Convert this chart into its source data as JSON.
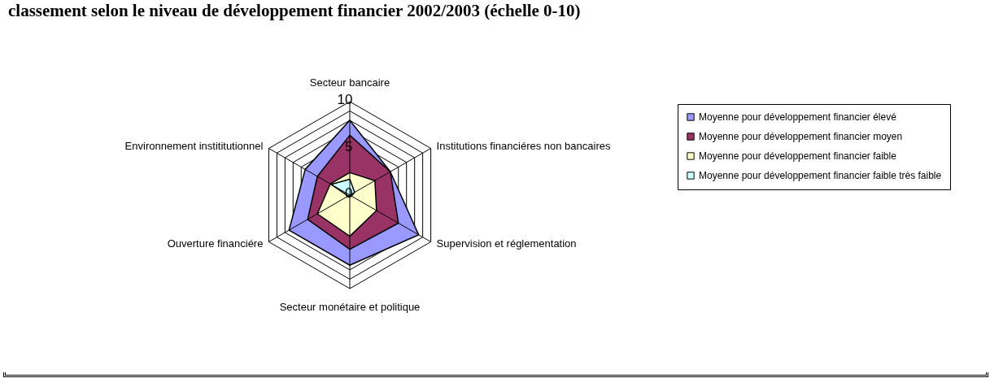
{
  "chart_data": {
    "type": "radar",
    "title": "classement selon le niveau de développement financier 2002/2003 (échelle 0-10)",
    "categories": [
      "Secteur bancaire",
      "Institutions financiéres non bancaires",
      "Supervision et réglementation",
      "Secteur monétaire et politique",
      "Ouverture financiére",
      "Environnement instititutionnel"
    ],
    "series": [
      {
        "name": "Moyenne pour développement financier élevé",
        "color": "#9999ff",
        "values": [
          8,
          5,
          8.5,
          7.5,
          7.5,
          5.5
        ]
      },
      {
        "name": "Moyenne pour développement financier moyen",
        "color": "#993366",
        "values": [
          6.4,
          5,
          6,
          5.8,
          5.2,
          4
        ]
      },
      {
        "name": "Moyenne pour développement financier faible",
        "color": "#ffffcc",
        "values": [
          2.4,
          3.1,
          3.3,
          4.4,
          4,
          2.4
        ]
      },
      {
        "name": "Moyenne pour développement financier faible très faible",
        "color": "#ccffff",
        "values": [
          1.7,
          0.6,
          0.2,
          0.2,
          0.2,
          2.3
        ]
      }
    ],
    "ylim": [
      0,
      10
    ],
    "yticks": [
      0,
      5,
      10
    ],
    "grid": true,
    "legend": "right"
  }
}
